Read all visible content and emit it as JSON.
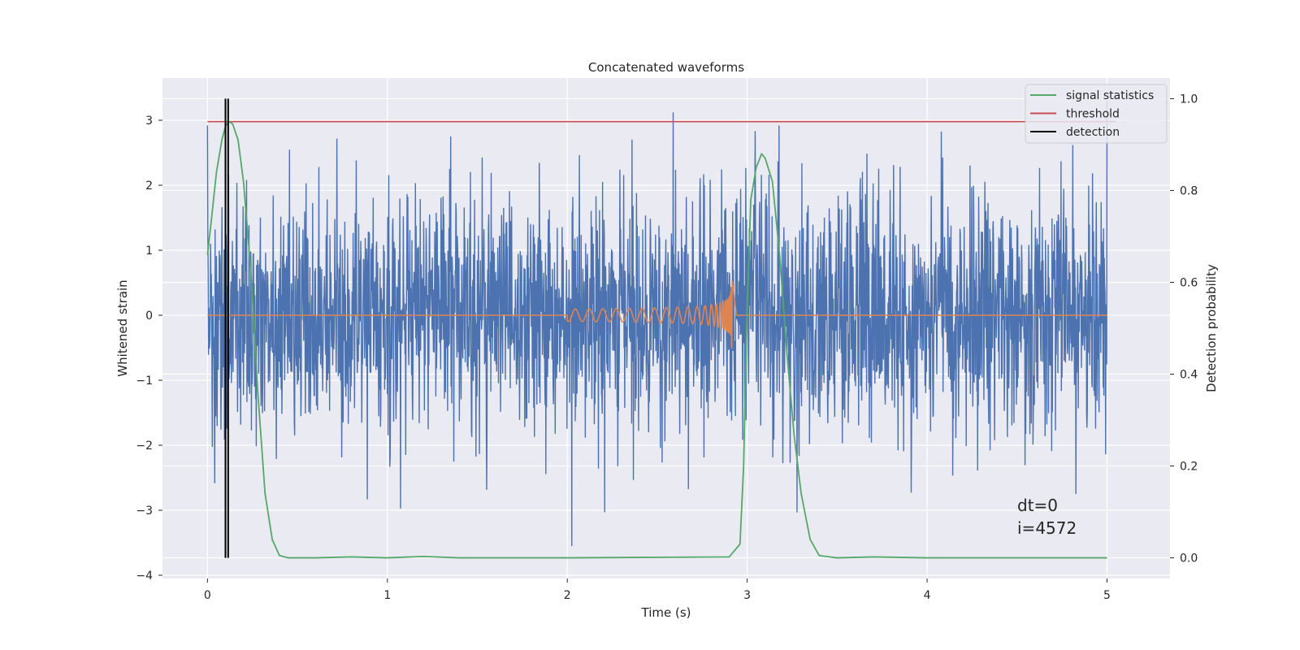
{
  "chart_data": {
    "type": "line",
    "title": "Concatenated waveforms",
    "xlabel": "Time (s)",
    "ylabel_left": "Whitened strain",
    "ylabel_right": "Detection probability",
    "xlim": [
      -0.25,
      5.35
    ],
    "ylim_left": [
      -4.05,
      3.65
    ],
    "ylim_right": [
      -0.045,
      1.045
    ],
    "x_ticks": [
      0,
      1,
      2,
      3,
      4,
      5
    ],
    "x_tick_labels": [
      "0",
      "1",
      "2",
      "3",
      "4",
      "5"
    ],
    "y_left_ticks": [
      -4,
      -3,
      -2,
      -1,
      0,
      1,
      2,
      3
    ],
    "y_left_tick_labels": [
      "−4",
      "−3",
      "−2",
      "−1",
      "0",
      "1",
      "2",
      "3"
    ],
    "y_right_ticks": [
      0.0,
      0.2,
      0.4,
      0.6,
      0.8,
      1.0
    ],
    "y_right_tick_labels": [
      "0.0",
      "0.2",
      "0.4",
      "0.6",
      "0.8",
      "1.0"
    ],
    "grid": true,
    "legend_position": "top-right",
    "series": [
      {
        "axis": "left",
        "kind": "noise",
        "x_range": [
          0,
          5
        ],
        "y_range": [
          -3.7,
          3.3
        ],
        "color": "#4c72b0"
      },
      {
        "axis": "left",
        "kind": "chirp",
        "x_range": [
          0,
          5
        ],
        "chirp_start": 2.0,
        "chirp_end": 2.92,
        "chirp_peak": 0.55,
        "color": "#dd8452"
      },
      {
        "name": "signal statistics",
        "axis": "right",
        "color": "#55a868",
        "x": [
          0,
          0.02,
          0.05,
          0.08,
          0.1,
          0.12,
          0.14,
          0.17,
          0.2,
          0.24,
          0.28,
          0.32,
          0.36,
          0.4,
          0.45,
          0.6,
          0.8,
          1.0,
          1.2,
          1.4,
          2.0,
          2.9,
          2.96,
          2.98,
          3.0,
          3.02,
          3.05,
          3.08,
          3.1,
          3.14,
          3.18,
          3.22,
          3.26,
          3.3,
          3.35,
          3.4,
          3.5,
          3.7,
          4.0,
          4.5,
          5.0
        ],
        "y": [
          0.66,
          0.73,
          0.84,
          0.91,
          0.94,
          0.95,
          0.945,
          0.91,
          0.82,
          0.63,
          0.36,
          0.14,
          0.04,
          0.005,
          0.0,
          0.0,
          0.002,
          0.0,
          0.003,
          0.0,
          0.0,
          0.002,
          0.03,
          0.2,
          0.55,
          0.78,
          0.85,
          0.88,
          0.87,
          0.82,
          0.66,
          0.45,
          0.27,
          0.14,
          0.04,
          0.005,
          0.0,
          0.002,
          0.0,
          0.0,
          0.0
        ]
      },
      {
        "name": "threshold",
        "axis": "right",
        "color": "#c44e52",
        "x": [
          0,
          5.05
        ],
        "y": [
          0.95,
          0.95
        ]
      },
      {
        "name": "detection",
        "axis": "right",
        "color": "#000000",
        "kind": "vlines",
        "x": [
          0.1,
          0.115
        ],
        "y_range": [
          0.0,
          1.0
        ]
      }
    ],
    "annotations": [
      "dt=0",
      "i=4572"
    ]
  }
}
